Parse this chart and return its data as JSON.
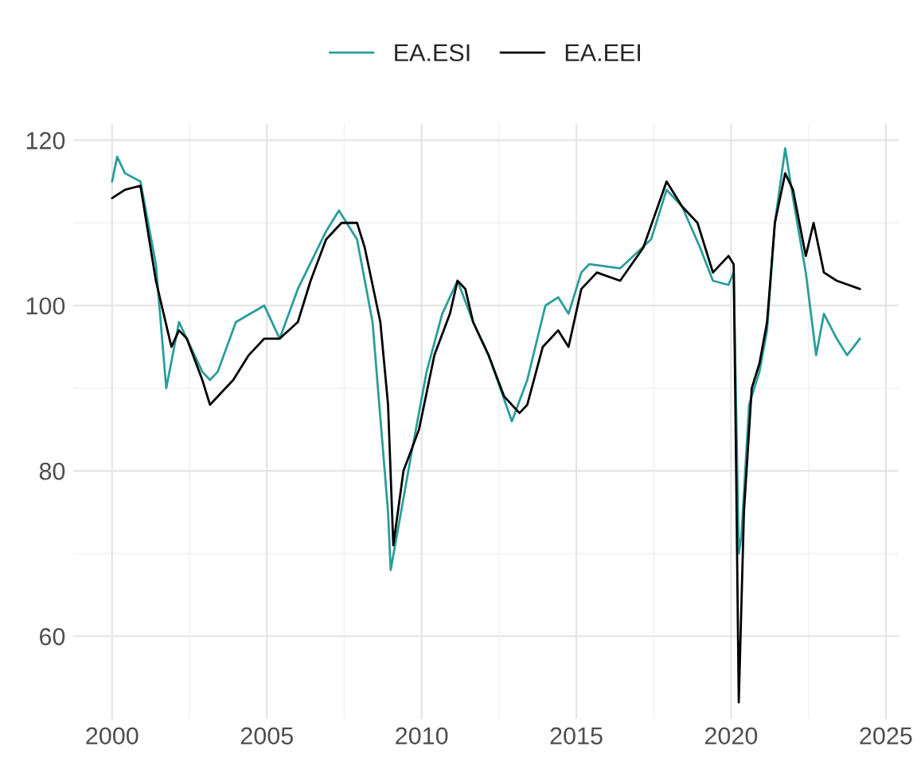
{
  "chart_data": {
    "type": "line",
    "series": [
      {
        "name": "EA.ESI",
        "color": "#2a9d9a",
        "x": [
          "2000-01",
          "2000-03",
          "2000-06",
          "2000-12",
          "2001-06",
          "2001-10",
          "2002-03",
          "2002-12",
          "2003-03",
          "2003-06",
          "2004-01",
          "2004-12",
          "2005-06",
          "2006-01",
          "2006-12",
          "2007-05",
          "2007-12",
          "2008-06",
          "2008-12",
          "2009-01",
          "2009-09",
          "2010-03",
          "2010-09",
          "2011-03",
          "2011-09",
          "2012-03",
          "2012-12",
          "2013-06",
          "2014-01",
          "2014-06",
          "2014-10",
          "2015-03",
          "2015-06",
          "2016-06",
          "2017-06",
          "2017-12",
          "2018-06",
          "2019-01",
          "2019-06",
          "2019-12",
          "2020-02",
          "2020-04",
          "2020-05",
          "2020-08",
          "2020-12",
          "2021-03",
          "2021-06",
          "2021-10",
          "2022-01",
          "2022-06",
          "2022-10",
          "2023-01",
          "2023-06",
          "2023-10",
          "2024-03"
        ],
        "values": [
          115,
          118,
          116,
          115,
          105,
          90,
          98,
          92,
          91,
          92,
          98,
          100,
          96,
          102,
          109,
          111.5,
          108,
          98,
          75,
          68,
          82,
          92,
          99,
          103,
          98,
          94,
          86,
          91,
          100,
          101,
          99,
          104,
          105,
          104.5,
          108,
          114,
          112,
          107,
          103,
          102.5,
          104,
          70,
          72,
          88,
          92,
          97,
          110,
          119,
          113,
          104,
          94,
          99,
          96,
          94,
          96
        ]
      },
      {
        "name": "EA.EEI",
        "color": "#000000",
        "x": [
          "2000-01",
          "2000-06",
          "2000-12",
          "2001-06",
          "2001-12",
          "2002-03",
          "2002-06",
          "2002-12",
          "2003-03",
          "2003-12",
          "2004-06",
          "2004-12",
          "2005-06",
          "2006-01",
          "2006-06",
          "2006-12",
          "2007-06",
          "2007-12",
          "2008-03",
          "2008-09",
          "2008-12",
          "2009-02",
          "2009-06",
          "2009-12",
          "2010-06",
          "2010-12",
          "2011-03",
          "2011-06",
          "2011-09",
          "2012-03",
          "2012-09",
          "2013-03",
          "2013-06",
          "2013-12",
          "2014-06",
          "2014-10",
          "2015-03",
          "2015-09",
          "2016-06",
          "2017-03",
          "2017-12",
          "2018-06",
          "2018-12",
          "2019-06",
          "2019-12",
          "2020-02",
          "2020-03",
          "2020-04",
          "2020-06",
          "2020-09",
          "2020-12",
          "2021-03",
          "2021-06",
          "2021-10",
          "2022-01",
          "2022-06",
          "2022-09",
          "2023-01",
          "2023-06",
          "2024-03"
        ],
        "values": [
          113,
          114,
          114.5,
          103,
          95,
          97,
          96,
          91,
          88,
          91,
          94,
          96,
          96,
          98,
          103,
          108,
          110,
          110,
          107,
          98,
          88,
          71,
          80,
          85,
          94,
          99,
          103,
          102,
          98,
          94,
          89,
          87,
          88,
          95,
          97,
          95,
          102,
          104,
          103,
          107,
          115,
          112,
          110,
          104,
          106,
          105,
          80,
          52,
          75,
          90,
          93,
          98,
          110,
          116,
          114,
          106,
          110,
          104,
          103,
          102
        ]
      }
    ],
    "xlim": [
      "1998-10",
      "2025-06"
    ],
    "ylim": [
      50,
      122
    ],
    "xticks": [
      {
        "value": "2000",
        "label": "2000"
      },
      {
        "value": "2005",
        "label": "2005"
      },
      {
        "value": "2010",
        "label": "2010"
      },
      {
        "value": "2015",
        "label": "2015"
      },
      {
        "value": "2020",
        "label": "2020"
      },
      {
        "value": "2025",
        "label": "2025"
      }
    ],
    "yticks": [
      60,
      80,
      100,
      120
    ],
    "grid": true,
    "legend": "top",
    "marker": "none",
    "line_style": "solid"
  }
}
